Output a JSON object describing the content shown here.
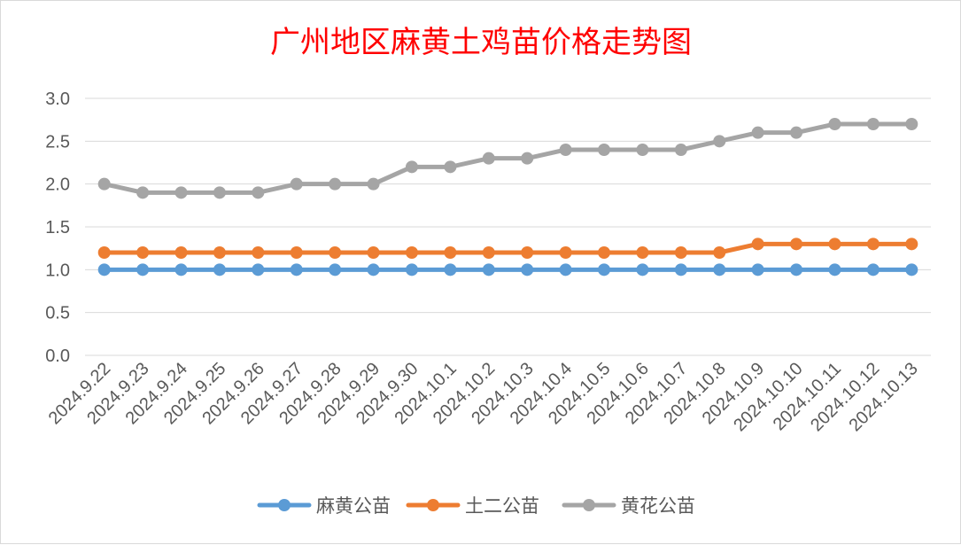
{
  "chart_data": {
    "type": "line",
    "title": "广州地区麻黄土鸡苗价格走势图",
    "xlabel": "",
    "ylabel": "",
    "ylim": [
      0,
      3.0
    ],
    "yticks": [
      "0.0",
      "0.5",
      "1.0",
      "1.5",
      "2.0",
      "2.5",
      "3.0"
    ],
    "grid": true,
    "legend_position": "bottom",
    "categories": [
      "2024.9.22",
      "2024.9.23",
      "2024.9.24",
      "2024.9.25",
      "2024.9.26",
      "2024.9.27",
      "2024.9.28",
      "2024.9.29",
      "2024.9.30",
      "2024.10.1",
      "2024.10.2",
      "2024.10.3",
      "2024.10.4",
      "2024.10.5",
      "2024.10.6",
      "2024.10.7",
      "2024.10.8",
      "2024.10.9",
      "2024.10.10",
      "2024.10.11",
      "2024.10.12",
      "2024.10.13"
    ],
    "series": [
      {
        "name": "麻黄公苗",
        "color": "#5b9bd5",
        "values": [
          1.0,
          1.0,
          1.0,
          1.0,
          1.0,
          1.0,
          1.0,
          1.0,
          1.0,
          1.0,
          1.0,
          1.0,
          1.0,
          1.0,
          1.0,
          1.0,
          1.0,
          1.0,
          1.0,
          1.0,
          1.0,
          1.0
        ]
      },
      {
        "name": "土二公苗",
        "color": "#ed7d31",
        "values": [
          1.2,
          1.2,
          1.2,
          1.2,
          1.2,
          1.2,
          1.2,
          1.2,
          1.2,
          1.2,
          1.2,
          1.2,
          1.2,
          1.2,
          1.2,
          1.2,
          1.2,
          1.3,
          1.3,
          1.3,
          1.3,
          1.3
        ]
      },
      {
        "name": "黄花公苗",
        "color": "#a5a5a5",
        "values": [
          2.0,
          1.9,
          1.9,
          1.9,
          1.9,
          2.0,
          2.0,
          2.0,
          2.2,
          2.2,
          2.3,
          2.3,
          2.4,
          2.4,
          2.4,
          2.4,
          2.5,
          2.6,
          2.6,
          2.7,
          2.7,
          2.7
        ]
      }
    ]
  }
}
